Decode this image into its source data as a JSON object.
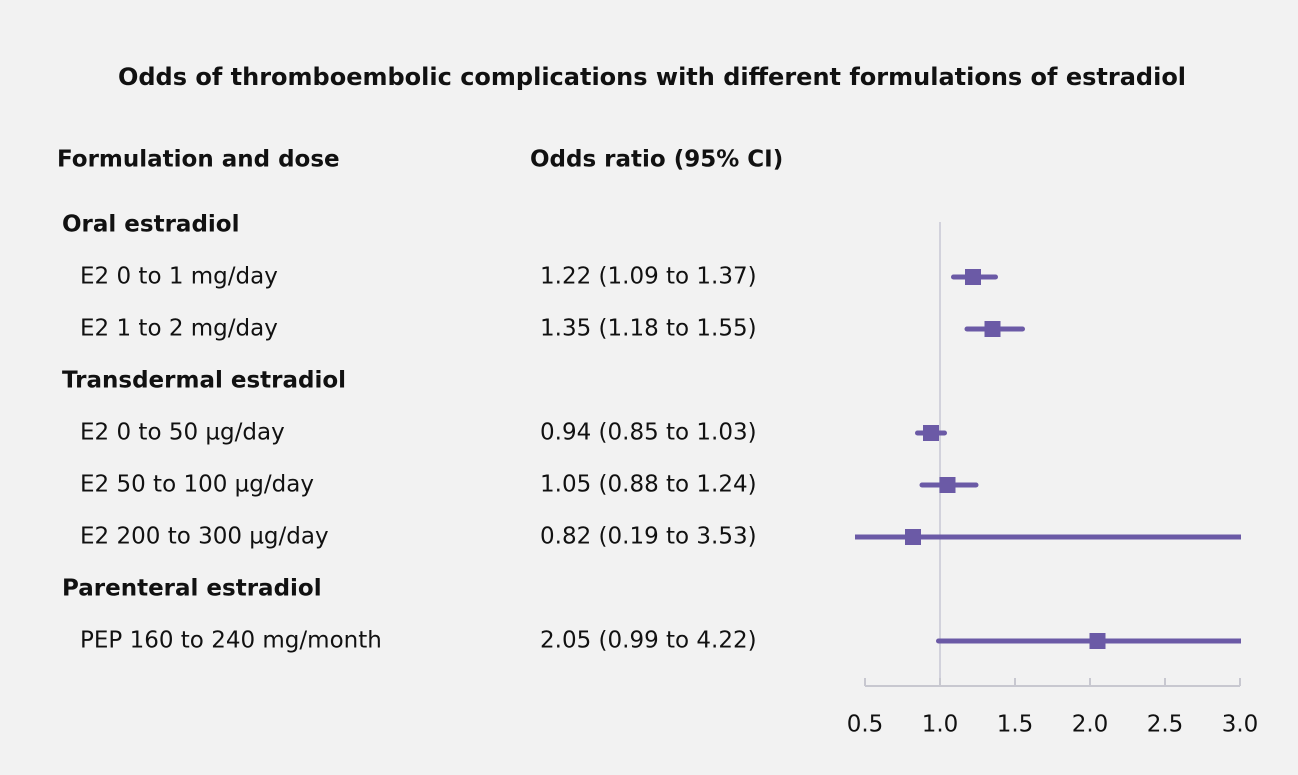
{
  "chart_data": {
    "type": "forest",
    "title": "Odds of thromboembolic complications with different formulations of estradiol",
    "headers": [
      "Formulation and dose",
      "Odds ratio (95% CI)"
    ],
    "color": "#6b5aa6",
    "groups": [
      {
        "name": "Oral estradiol",
        "categories": [
          "E2 0 to 1 mg/day",
          "E2 1 to 2 mg/day"
        ],
        "values": [
          1.22,
          1.35
        ],
        "lower": [
          1.09,
          1.18
        ],
        "upper": [
          1.37,
          1.55
        ],
        "value_labels": [
          "1.22 (1.09 to 1.37)",
          "1.35 (1.18 to 1.55)"
        ]
      },
      {
        "name": "Transdermal estradiol",
        "categories": [
          "E2 0 to 50 µg/day",
          "E2 50 to 100 µg/day",
          "E2 200 to 300 µg/day"
        ],
        "values": [
          0.94,
          1.05,
          0.82
        ],
        "lower": [
          0.85,
          0.88,
          0.19
        ],
        "upper": [
          1.03,
          1.24,
          3.53
        ],
        "value_labels": [
          "0.94 (0.85 to 1.03)",
          "1.05 (0.88 to 1.24)",
          "0.82 (0.19 to 3.53)"
        ]
      },
      {
        "name": "Parenteral estradiol",
        "categories": [
          "PEP 160 to 240 mg/month"
        ],
        "values": [
          2.05
        ],
        "lower": [
          0.99
        ],
        "upper": [
          4.22
        ],
        "value_labels": [
          "2.05 (0.99 to 4.22)"
        ]
      }
    ],
    "xlim": [
      0.5,
      3.0
    ],
    "xticks": [
      0.5,
      {
        "value": 1,
        "label": "1.0"
      },
      1.5,
      {
        "value": 2,
        "label": "2.0"
      },
      2.5,
      {
        "value": 3,
        "label": "3.0"
      }
    ],
    "reference_line": 1
  }
}
